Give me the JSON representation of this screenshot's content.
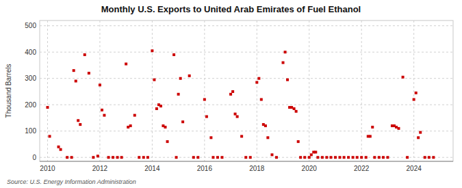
{
  "chart_data": {
    "type": "scatter",
    "title": "Monthly U.S. Exports to United Arab Emirates of Fuel Ethanol",
    "ylabel": "Thousand Barrels",
    "source": "Source: U.S. Energy Information Administration",
    "color": "#cc0000",
    "marker": "square",
    "grid": true,
    "xlim": [
      2009.7,
      2025.5
    ],
    "ylim": [
      -15,
      520
    ],
    "xticks": [
      2010,
      2012,
      2014,
      2016,
      2018,
      2020,
      2022,
      2024
    ],
    "yticks": [
      0,
      100,
      200,
      300,
      400,
      500
    ],
    "x": [
      2010.0,
      2010.08,
      2010.42,
      2010.5,
      2010.75,
      2010.92,
      2011.0,
      2011.08,
      2011.17,
      2011.25,
      2011.42,
      2011.58,
      2011.75,
      2011.92,
      2012.0,
      2012.08,
      2012.17,
      2012.33,
      2012.5,
      2012.67,
      2012.83,
      2013.0,
      2013.08,
      2013.17,
      2013.33,
      2013.5,
      2013.67,
      2013.83,
      2014.0,
      2014.08,
      2014.17,
      2014.25,
      2014.33,
      2014.42,
      2014.5,
      2014.58,
      2014.83,
      2014.92,
      2015.0,
      2015.08,
      2015.17,
      2015.42,
      2015.58,
      2015.75,
      2016.0,
      2016.08,
      2016.25,
      2016.33,
      2016.5,
      2016.67,
      2017.0,
      2017.08,
      2017.17,
      2017.25,
      2017.42,
      2017.58,
      2017.75,
      2018.0,
      2018.08,
      2018.17,
      2018.25,
      2018.33,
      2018.42,
      2018.58,
      2018.75,
      2019.0,
      2019.08,
      2019.17,
      2019.25,
      2019.33,
      2019.42,
      2019.5,
      2019.58,
      2019.67,
      2019.83,
      2020.0,
      2020.08,
      2020.17,
      2020.25,
      2020.33,
      2020.5,
      2020.67,
      2020.83,
      2021.0,
      2021.17,
      2021.33,
      2021.5,
      2021.67,
      2021.83,
      2022.0,
      2022.17,
      2022.25,
      2022.33,
      2022.42,
      2022.5,
      2022.67,
      2022.83,
      2023.0,
      2023.17,
      2023.25,
      2023.33,
      2023.42,
      2023.58,
      2023.75,
      2024.0,
      2024.08,
      2024.17,
      2024.25,
      2024.42,
      2024.58,
      2024.75
    ],
    "values": [
      190,
      80,
      40,
      30,
      0,
      0,
      330,
      290,
      140,
      125,
      390,
      320,
      0,
      5,
      275,
      180,
      160,
      0,
      0,
      0,
      0,
      355,
      115,
      120,
      160,
      0,
      0,
      0,
      405,
      295,
      185,
      200,
      195,
      120,
      115,
      60,
      390,
      0,
      240,
      300,
      135,
      310,
      0,
      0,
      220,
      155,
      75,
      0,
      0,
      0,
      240,
      250,
      165,
      155,
      80,
      0,
      0,
      285,
      300,
      220,
      125,
      120,
      75,
      10,
      0,
      360,
      400,
      295,
      190,
      190,
      185,
      175,
      60,
      0,
      0,
      0,
      10,
      20,
      20,
      0,
      0,
      0,
      0,
      0,
      0,
      0,
      0,
      0,
      0,
      0,
      0,
      80,
      80,
      115,
      0,
      0,
      0,
      0,
      120,
      120,
      115,
      110,
      305,
      0,
      220,
      245,
      75,
      95,
      0,
      0,
      0
    ]
  }
}
